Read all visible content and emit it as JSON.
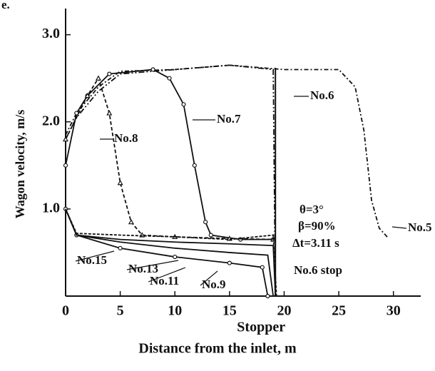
{
  "chart_data": {
    "type": "line",
    "panel_label": "e.",
    "xlabel": "Distance from the inlet, m",
    "ylabel": "Wagon velocity, m/s",
    "xlim": [
      0,
      32.5
    ],
    "ylim": [
      0,
      3.3
    ],
    "xticks": [
      0,
      5,
      10,
      15,
      20,
      25,
      30
    ],
    "yticks": [
      {
        "value": 1,
        "label": "1.0"
      },
      {
        "value": 2,
        "label": "2.0"
      },
      {
        "value": 3,
        "label": "3.0"
      }
    ],
    "grid": false,
    "stopper": {
      "x": 19.2,
      "label": "Stopper"
    },
    "annotations": [
      "θ=3°",
      "β=90%",
      "Δt=3.11 s",
      "No.6 stop"
    ],
    "series": [
      {
        "name": "No.5",
        "color": "#111",
        "dash": "6 3 2 3",
        "marker": "none",
        "x": [
          0,
          1,
          3,
          5,
          10,
          15,
          20,
          25,
          26.5,
          27.3,
          28,
          28.7,
          29.5
        ],
        "values": [
          1.85,
          2.1,
          2.4,
          2.58,
          2.6,
          2.65,
          2.6,
          2.6,
          2.4,
          1.9,
          1.1,
          0.78,
          0.67
        ]
      },
      {
        "name": "No.6",
        "color": "#111",
        "dash": "8 3 2 3 2 3",
        "marker": "none",
        "x": [
          0,
          1,
          3,
          5,
          10,
          15,
          19,
          19.2
        ],
        "values": [
          1.8,
          2.05,
          2.35,
          2.55,
          2.6,
          2.65,
          2.6,
          0
        ]
      },
      {
        "name": "No.7",
        "color": "#111",
        "dash": "none",
        "marker": "circle",
        "x": [
          0,
          1,
          2,
          4,
          8,
          9.5,
          10.8,
          11.8,
          12.8,
          13.3,
          16,
          19
        ],
        "values": [
          1.5,
          2.1,
          2.3,
          2.55,
          2.6,
          2.5,
          2.2,
          1.5,
          0.85,
          0.7,
          0.65,
          0.65
        ]
      },
      {
        "name": "No.8",
        "color": "#111",
        "dash": "5 3",
        "marker": "triangle",
        "x": [
          0,
          2,
          3,
          4,
          5,
          6,
          7,
          10,
          15,
          19
        ],
        "values": [
          1.8,
          2.3,
          2.5,
          2.1,
          1.3,
          0.85,
          0.7,
          0.68,
          0.66,
          0.65
        ]
      },
      {
        "name": "No.9",
        "color": "#111",
        "dash": "none",
        "marker": "circle",
        "x": [
          0,
          1,
          5,
          10,
          15,
          18,
          18.5
        ],
        "values": [
          1.0,
          0.7,
          0.55,
          0.45,
          0.38,
          0.33,
          0
        ]
      },
      {
        "name": "No.11",
        "color": "#111",
        "dash": "none",
        "marker": "none",
        "x": [
          0,
          1,
          5,
          10,
          15,
          18.5,
          19
        ],
        "values": [
          1.0,
          0.7,
          0.62,
          0.55,
          0.5,
          0.47,
          0
        ]
      },
      {
        "name": "No.13",
        "color": "#111",
        "dash": "none",
        "marker": "none",
        "x": [
          0,
          1,
          5,
          10,
          15,
          19,
          19.2
        ],
        "values": [
          1.0,
          0.7,
          0.65,
          0.62,
          0.6,
          0.58,
          0
        ]
      },
      {
        "name": "No.15",
        "color": "#111",
        "dash": "4 2",
        "marker": "none",
        "x": [
          0,
          1,
          5,
          10,
          15,
          19,
          19.3
        ],
        "values": [
          1.0,
          0.72,
          0.7,
          0.68,
          0.65,
          0.7,
          0
        ]
      }
    ]
  }
}
